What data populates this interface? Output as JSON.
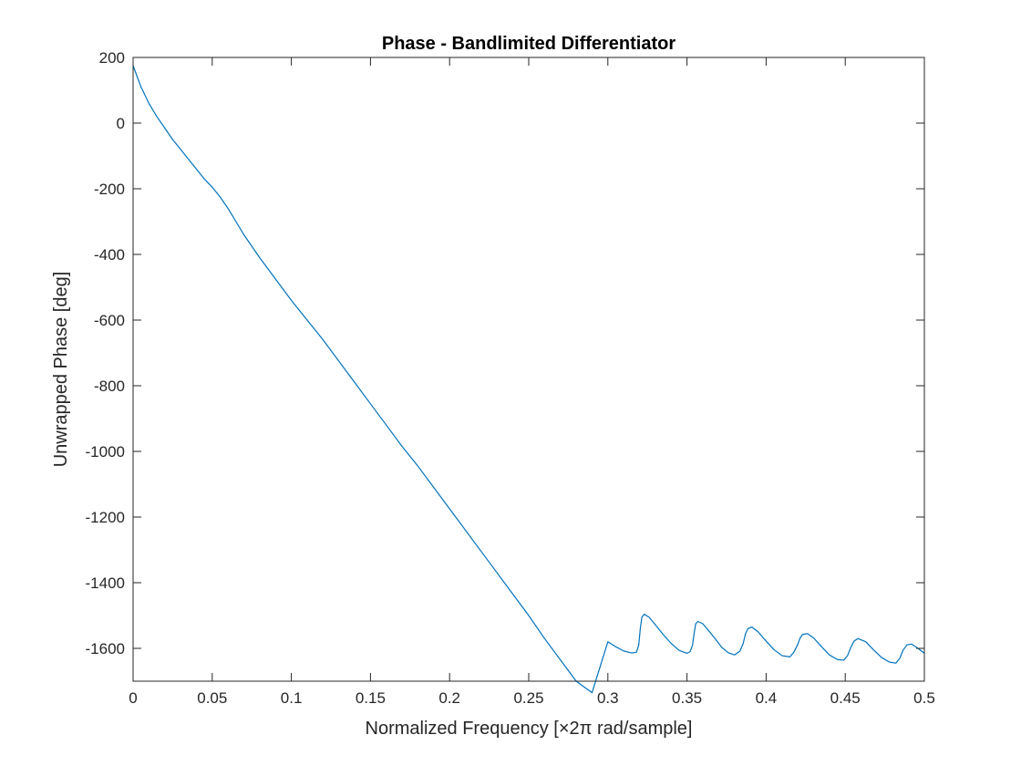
{
  "chart_data": {
    "type": "line",
    "title": "Phase - Bandlimited Differentiator",
    "xlabel": "Normalized Frequency [×2π rad/sample]",
    "ylabel": "Unwrapped Phase [deg]",
    "xlim": [
      0,
      0.5
    ],
    "ylim": [
      -1700,
      200
    ],
    "xticks": [
      0,
      0.05,
      0.1,
      0.15,
      0.2,
      0.25,
      0.3,
      0.35,
      0.4,
      0.45,
      0.5
    ],
    "xtick_labels": [
      "0",
      "0.05",
      "0.1",
      "0.15",
      "0.2",
      "0.25",
      "0.3",
      "0.35",
      "0.4",
      "0.45",
      "0.5"
    ],
    "yticks": [
      200,
      0,
      -200,
      -400,
      -600,
      -800,
      -1000,
      -1200,
      -1400,
      -1600
    ],
    "ytick_labels": [
      "200",
      "0",
      "-200",
      "-400",
      "-600",
      "-800",
      "-1000",
      "-1200",
      "-1400",
      "-1600"
    ],
    "grid": false,
    "line_color": "#0072BD",
    "series": [
      {
        "x": [
          0,
          0.005,
          0.01,
          0.015,
          0.02,
          0.025,
          0.03,
          0.035,
          0.04,
          0.045,
          0.05,
          0.055,
          0.06,
          0.065,
          0.07,
          0.08,
          0.09,
          0.1,
          0.11,
          0.12,
          0.13,
          0.14,
          0.15,
          0.16,
          0.17,
          0.18,
          0.19,
          0.2,
          0.21,
          0.22,
          0.23,
          0.24,
          0.25,
          0.26,
          0.27,
          0.28,
          0.29,
          0.3,
          0.305,
          0.31,
          0.315,
          0.318,
          0.3195,
          0.3205,
          0.3215,
          0.323,
          0.326,
          0.33,
          0.335,
          0.34,
          0.345,
          0.35,
          0.352,
          0.3535,
          0.3545,
          0.3555,
          0.357,
          0.36,
          0.364,
          0.368,
          0.372,
          0.376,
          0.38,
          0.3835,
          0.3855,
          0.387,
          0.3885,
          0.391,
          0.395,
          0.4,
          0.405,
          0.41,
          0.415,
          0.4175,
          0.42,
          0.4215,
          0.423,
          0.426,
          0.43,
          0.435,
          0.44,
          0.445,
          0.449,
          0.4515,
          0.4535,
          0.4555,
          0.458,
          0.463,
          0.468,
          0.473,
          0.478,
          0.482,
          0.4845,
          0.4865,
          0.489,
          0.492,
          0.496,
          0.5
        ],
        "y": [
          175,
          110,
          60,
          20,
          -15,
          -50,
          -80,
          -110,
          -140,
          -170,
          -195,
          -225,
          -260,
          -300,
          -340,
          -410,
          -475,
          -540,
          -600,
          -660,
          -725,
          -790,
          -855,
          -920,
          -985,
          -1045,
          -1110,
          -1175,
          -1240,
          -1305,
          -1370,
          -1435,
          -1500,
          -1570,
          -1635,
          -1700,
          -1735,
          -1580,
          -1595,
          -1608,
          -1614,
          -1612,
          -1590,
          -1540,
          -1505,
          -1496,
          -1505,
          -1528,
          -1558,
          -1585,
          -1606,
          -1615,
          -1610,
          -1590,
          -1555,
          -1525,
          -1518,
          -1525,
          -1548,
          -1572,
          -1597,
          -1613,
          -1620,
          -1608,
          -1585,
          -1555,
          -1540,
          -1535,
          -1550,
          -1578,
          -1604,
          -1622,
          -1626,
          -1612,
          -1588,
          -1568,
          -1558,
          -1555,
          -1568,
          -1595,
          -1620,
          -1634,
          -1636,
          -1622,
          -1597,
          -1578,
          -1570,
          -1580,
          -1605,
          -1628,
          -1642,
          -1645,
          -1630,
          -1606,
          -1589,
          -1587,
          -1600,
          -1615
        ]
      }
    ]
  }
}
